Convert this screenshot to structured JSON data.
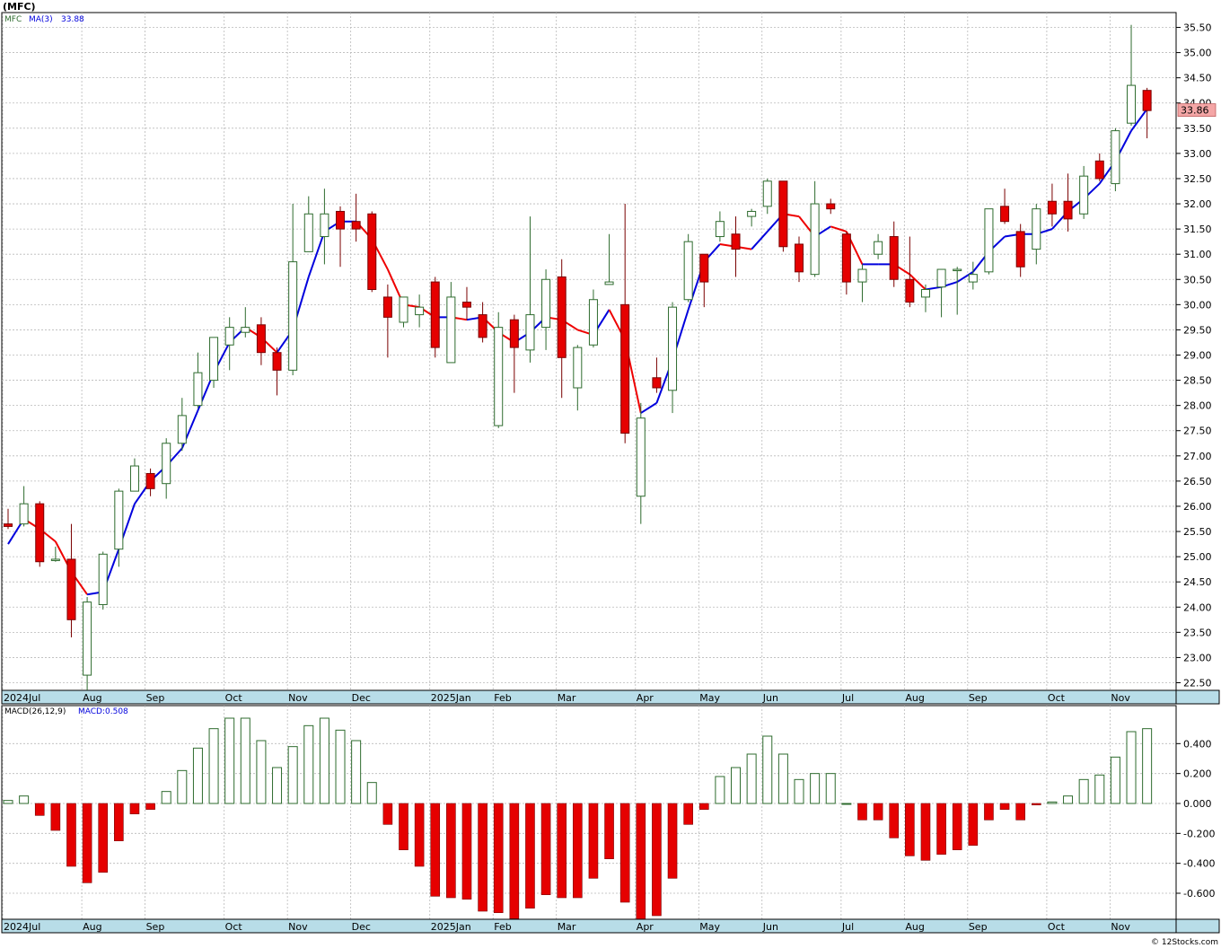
{
  "title": "(MFC)",
  "footer": "© 12Stocks.com",
  "colors": {
    "up_fill": "#ffffff",
    "up_stroke": "#2e6b2e",
    "down_fill": "#e50000",
    "down_stroke": "#7a0000",
    "ma_up": "#0000dd",
    "ma_down": "#ee0000",
    "axis_band": "#b8dde8",
    "grid": "#b9b9b9",
    "macd_up_stroke": "#2e6b2e",
    "macd_down_fill": "#e50000",
    "last_price_bg": "#f4a6a6"
  },
  "price_panel": {
    "symbol_label": "MFC",
    "ma_label": "MA(3)",
    "ma_value": "33.88",
    "last_price": "33.86"
  },
  "macd_panel": {
    "label": "MACD(26,12,9)",
    "value_label": "MACD:0.508"
  },
  "chart_data": [
    {
      "type": "candlestick",
      "title": "(MFC)",
      "ylim": [
        22.25,
        35.8
      ],
      "y_ticks": [
        "22.50",
        "23.00",
        "23.50",
        "24.00",
        "24.50",
        "25.00",
        "25.50",
        "26.00",
        "26.50",
        "27.00",
        "27.50",
        "28.00",
        "28.50",
        "29.00",
        "29.50",
        "30.00",
        "30.50",
        "31.00",
        "31.50",
        "32.00",
        "32.50",
        "33.00",
        "33.50",
        "34.00",
        "34.50",
        "35.00",
        "35.50"
      ],
      "x_labels": [
        {
          "label": "2024Jul",
          "week": 0
        },
        {
          "label": "Aug",
          "week": 5
        },
        {
          "label": "Sep",
          "week": 9
        },
        {
          "label": "Oct",
          "week": 14
        },
        {
          "label": "Nov",
          "week": 18
        },
        {
          "label": "Dec",
          "week": 22
        },
        {
          "label": "2025Jan",
          "week": 27
        },
        {
          "label": "Feb",
          "week": 31
        },
        {
          "label": "Mar",
          "week": 35
        },
        {
          "label": "Apr",
          "week": 40
        },
        {
          "label": "May",
          "week": 44
        },
        {
          "label": "Jun",
          "week": 48
        },
        {
          "label": "Jul",
          "week": 53
        },
        {
          "label": "Aug",
          "week": 57
        },
        {
          "label": "Sep",
          "week": 61
        },
        {
          "label": "Oct",
          "week": 66
        },
        {
          "label": "Nov",
          "week": 70
        }
      ],
      "candles": [
        {
          "o": 25.65,
          "h": 25.95,
          "l": 25.55,
          "c": 25.6
        },
        {
          "o": 25.65,
          "h": 26.4,
          "l": 25.6,
          "c": 26.05
        },
        {
          "o": 26.05,
          "h": 26.1,
          "l": 24.8,
          "c": 24.9
        },
        {
          "o": 24.95,
          "h": 25.2,
          "l": 24.9,
          "c": 24.95
        },
        {
          "o": 24.95,
          "h": 25.65,
          "l": 23.4,
          "c": 23.75
        },
        {
          "o": 22.65,
          "h": 24.2,
          "l": 22.35,
          "c": 24.1
        },
        {
          "o": 24.05,
          "h": 25.1,
          "l": 23.95,
          "c": 25.05
        },
        {
          "o": 25.15,
          "h": 26.35,
          "l": 24.8,
          "c": 26.3
        },
        {
          "o": 26.3,
          "h": 26.95,
          "l": 26.3,
          "c": 26.8
        },
        {
          "o": 26.65,
          "h": 26.75,
          "l": 26.2,
          "c": 26.35
        },
        {
          "o": 26.45,
          "h": 27.35,
          "l": 26.15,
          "c": 27.25
        },
        {
          "o": 27.25,
          "h": 28.15,
          "l": 27.1,
          "c": 27.8
        },
        {
          "o": 28.0,
          "h": 29.05,
          "l": 27.95,
          "c": 28.65
        },
        {
          "o": 28.5,
          "h": 29.35,
          "l": 28.35,
          "c": 29.35
        },
        {
          "o": 29.2,
          "h": 29.75,
          "l": 28.7,
          "c": 29.55
        },
        {
          "o": 29.45,
          "h": 29.95,
          "l": 29.35,
          "c": 29.55
        },
        {
          "o": 29.6,
          "h": 29.75,
          "l": 28.8,
          "c": 29.05
        },
        {
          "o": 29.05,
          "h": 29.15,
          "l": 28.2,
          "c": 28.7
        },
        {
          "o": 28.7,
          "h": 32.0,
          "l": 28.6,
          "c": 30.85
        },
        {
          "o": 31.05,
          "h": 32.15,
          "l": 31.05,
          "c": 31.8
        },
        {
          "o": 31.35,
          "h": 32.3,
          "l": 30.8,
          "c": 31.8
        },
        {
          "o": 31.85,
          "h": 31.95,
          "l": 30.75,
          "c": 31.5
        },
        {
          "o": 31.65,
          "h": 32.2,
          "l": 31.25,
          "c": 31.5
        },
        {
          "o": 31.8,
          "h": 31.85,
          "l": 30.25,
          "c": 30.3
        },
        {
          "o": 30.15,
          "h": 30.4,
          "l": 28.95,
          "c": 29.75
        },
        {
          "o": 29.65,
          "h": 30.1,
          "l": 29.55,
          "c": 30.15
        },
        {
          "o": 29.8,
          "h": 30.2,
          "l": 29.55,
          "c": 29.95
        },
        {
          "o": 30.45,
          "h": 30.55,
          "l": 28.95,
          "c": 29.15
        },
        {
          "o": 28.85,
          "h": 30.45,
          "l": 28.85,
          "c": 30.15
        },
        {
          "o": 30.05,
          "h": 30.35,
          "l": 29.7,
          "c": 29.95
        },
        {
          "o": 29.8,
          "h": 30.05,
          "l": 29.25,
          "c": 29.35
        },
        {
          "o": 27.6,
          "h": 29.85,
          "l": 27.55,
          "c": 29.55
        },
        {
          "o": 29.7,
          "h": 29.8,
          "l": 28.25,
          "c": 29.15
        },
        {
          "o": 29.1,
          "h": 31.75,
          "l": 28.85,
          "c": 29.8
        },
        {
          "o": 29.55,
          "h": 30.7,
          "l": 29.1,
          "c": 30.5
        },
        {
          "o": 30.55,
          "h": 30.9,
          "l": 28.15,
          "c": 28.95
        },
        {
          "o": 28.35,
          "h": 29.2,
          "l": 27.9,
          "c": 29.15
        },
        {
          "o": 29.2,
          "h": 30.3,
          "l": 29.15,
          "c": 30.1
        },
        {
          "o": 30.4,
          "h": 31.4,
          "l": 30.4,
          "c": 30.45
        },
        {
          "o": 30.0,
          "h": 32.0,
          "l": 27.25,
          "c": 27.45
        },
        {
          "o": 26.2,
          "h": 28.05,
          "l": 25.65,
          "c": 27.75
        },
        {
          "o": 28.55,
          "h": 28.95,
          "l": 28.25,
          "c": 28.35
        },
        {
          "o": 28.3,
          "h": 30.05,
          "l": 27.85,
          "c": 29.95
        },
        {
          "o": 30.1,
          "h": 31.4,
          "l": 30.05,
          "c": 31.25
        },
        {
          "o": 31.0,
          "h": 31.0,
          "l": 29.95,
          "c": 30.45
        },
        {
          "o": 31.35,
          "h": 31.85,
          "l": 31.25,
          "c": 31.65
        },
        {
          "o": 31.4,
          "h": 31.75,
          "l": 30.55,
          "c": 31.1
        },
        {
          "o": 31.75,
          "h": 31.9,
          "l": 31.55,
          "c": 31.85
        },
        {
          "o": 31.95,
          "h": 32.5,
          "l": 31.8,
          "c": 32.45
        },
        {
          "o": 32.45,
          "h": 32.45,
          "l": 31.05,
          "c": 31.15
        },
        {
          "o": 31.2,
          "h": 31.35,
          "l": 30.45,
          "c": 30.65
        },
        {
          "o": 30.6,
          "h": 32.45,
          "l": 30.55,
          "c": 32.0
        },
        {
          "o": 32.0,
          "h": 32.1,
          "l": 31.8,
          "c": 31.9
        },
        {
          "o": 31.4,
          "h": 31.45,
          "l": 30.2,
          "c": 30.45
        },
        {
          "o": 30.45,
          "h": 30.8,
          "l": 30.05,
          "c": 30.7
        },
        {
          "o": 31.0,
          "h": 31.4,
          "l": 30.9,
          "c": 31.25
        },
        {
          "o": 31.35,
          "h": 31.65,
          "l": 30.35,
          "c": 30.5
        },
        {
          "o": 30.5,
          "h": 31.35,
          "l": 29.95,
          "c": 30.05
        },
        {
          "o": 30.15,
          "h": 30.4,
          "l": 29.85,
          "c": 30.3
        },
        {
          "o": 30.35,
          "h": 30.7,
          "l": 29.75,
          "c": 30.7
        },
        {
          "o": 30.7,
          "h": 30.75,
          "l": 29.8,
          "c": 30.7
        },
        {
          "o": 30.45,
          "h": 30.85,
          "l": 30.3,
          "c": 30.6
        },
        {
          "o": 30.65,
          "h": 31.9,
          "l": 30.6,
          "c": 31.9
        },
        {
          "o": 31.95,
          "h": 32.3,
          "l": 31.6,
          "c": 31.65
        },
        {
          "o": 31.45,
          "h": 31.6,
          "l": 30.55,
          "c": 30.75
        },
        {
          "o": 31.1,
          "h": 32.0,
          "l": 30.8,
          "c": 31.9
        },
        {
          "o": 32.05,
          "h": 32.4,
          "l": 31.55,
          "c": 31.8
        },
        {
          "o": 32.05,
          "h": 32.6,
          "l": 31.45,
          "c": 31.7
        },
        {
          "o": 31.8,
          "h": 32.75,
          "l": 31.7,
          "c": 32.55
        },
        {
          "o": 32.85,
          "h": 33.0,
          "l": 32.45,
          "c": 32.5
        },
        {
          "o": 32.4,
          "h": 33.5,
          "l": 32.25,
          "c": 33.45
        },
        {
          "o": 33.6,
          "h": 35.55,
          "l": 33.55,
          "c": 34.35
        },
        {
          "o": 34.25,
          "h": 34.3,
          "l": 33.3,
          "c": 33.85
        }
      ],
      "ma3": [
        25.25,
        25.75,
        25.55,
        25.3,
        24.7,
        24.25,
        24.3,
        25.15,
        26.05,
        26.5,
        26.8,
        27.15,
        27.9,
        28.65,
        29.25,
        29.55,
        29.35,
        29.05,
        29.5,
        30.55,
        31.45,
        31.65,
        31.65,
        31.3,
        30.7,
        30.0,
        29.95,
        29.75,
        29.75,
        29.7,
        29.75,
        29.45,
        29.25,
        29.45,
        29.75,
        29.7,
        29.5,
        29.4,
        29.9,
        29.3,
        27.85,
        28.05,
        28.9,
        29.9,
        30.85,
        31.2,
        31.15,
        31.1,
        31.45,
        31.8,
        31.75,
        31.35,
        31.55,
        31.45,
        30.8,
        30.8,
        30.8,
        30.6,
        30.3,
        30.35,
        30.45,
        30.65,
        31.05,
        31.35,
        31.4,
        31.4,
        31.5,
        31.85,
        32.1,
        32.4,
        32.85,
        33.45,
        33.88
      ],
      "macd": [
        0.02,
        0.05,
        -0.08,
        -0.18,
        -0.42,
        -0.53,
        -0.46,
        -0.25,
        -0.07,
        -0.04,
        0.08,
        0.22,
        0.37,
        0.5,
        0.57,
        0.57,
        0.42,
        0.24,
        0.38,
        0.52,
        0.57,
        0.49,
        0.42,
        0.14,
        -0.14,
        -0.31,
        -0.42,
        -0.62,
        -0.63,
        -0.64,
        -0.72,
        -0.73,
        -0.77,
        -0.7,
        -0.61,
        -0.63,
        -0.63,
        -0.5,
        -0.37,
        -0.66,
        -0.8,
        -0.75,
        -0.5,
        -0.14,
        -0.04,
        0.18,
        0.24,
        0.33,
        0.45,
        0.33,
        0.16,
        0.2,
        0.2,
        0.0,
        -0.11,
        -0.11,
        -0.23,
        -0.35,
        -0.38,
        -0.34,
        -0.31,
        -0.28,
        -0.11,
        -0.04,
        -0.11,
        -0.01,
        0.01,
        0.05,
        0.16,
        0.19,
        0.31,
        0.48,
        0.5
      ],
      "macd_ylim": [
        -0.78,
        0.62
      ],
      "macd_y_ticks": [
        "0.400",
        "0.200",
        "0.000",
        "-0.200",
        "-0.400",
        "-0.600"
      ],
      "macd_tick_values": [
        0.4,
        0.2,
        0.0,
        -0.2,
        -0.4,
        -0.6
      ]
    }
  ]
}
